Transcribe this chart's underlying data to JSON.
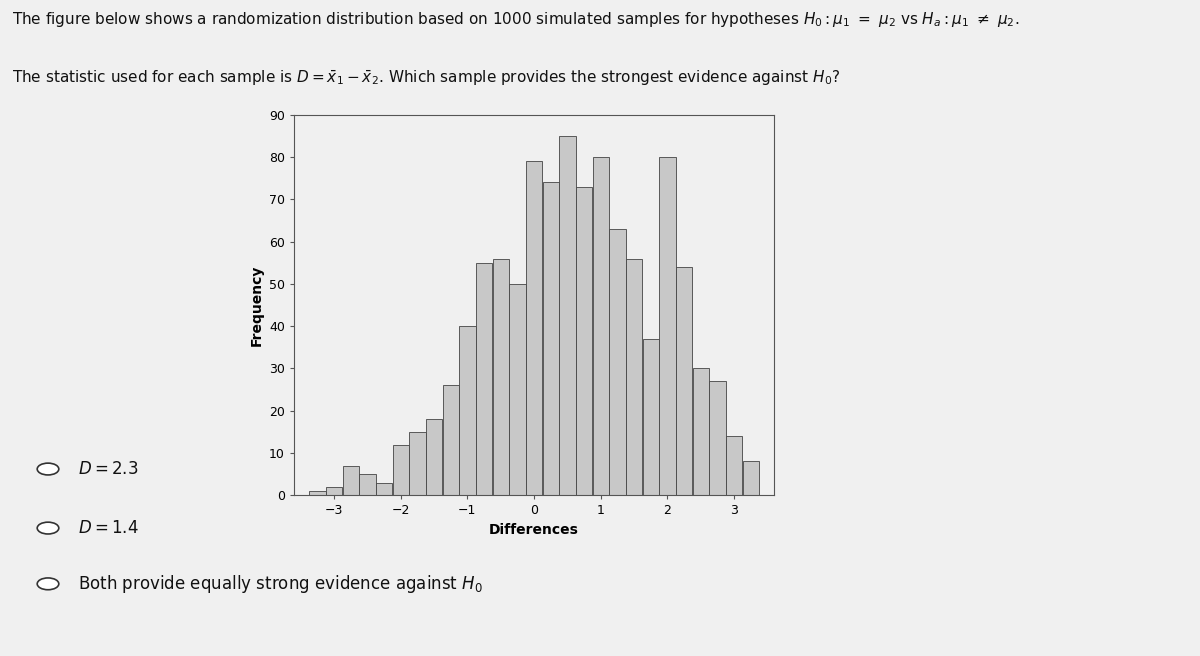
{
  "xlabel": "Differences",
  "ylabel": "Frequency",
  "bar_color": "#c8c8c8",
  "bar_edge_color": "#444444",
  "background_color": "#f0f0f0",
  "ylim": [
    0,
    90
  ],
  "yticks": [
    0,
    10,
    20,
    30,
    40,
    50,
    60,
    70,
    80,
    90
  ],
  "xticks": [
    -3,
    -2,
    -1,
    0,
    1,
    2,
    3
  ],
  "bin_centers": [
    -3.25,
    -3.0,
    -2.75,
    -2.5,
    -2.25,
    -2.0,
    -1.75,
    -1.5,
    -1.25,
    -1.0,
    -0.75,
    -0.5,
    -0.25,
    0.0,
    0.25,
    0.5,
    0.75,
    1.0,
    1.25,
    1.5,
    1.75,
    2.0,
    2.25,
    2.5,
    2.75,
    3.0,
    3.25
  ],
  "bar_heights": [
    1,
    2,
    7,
    5,
    3,
    12,
    15,
    18,
    26,
    40,
    55,
    56,
    50,
    79,
    74,
    85,
    73,
    80,
    63,
    56,
    37,
    80,
    54,
    30,
    27,
    14,
    8
  ],
  "bar_width": 0.245,
  "font_size_text": 11,
  "font_size_axis_label": 10,
  "font_size_ticks": 9,
  "option1_plain": "D = 2.3",
  "option2_plain": "D = 1.4",
  "option3_plain": "Both provide equally strong evidence against ",
  "radio_size": 8
}
